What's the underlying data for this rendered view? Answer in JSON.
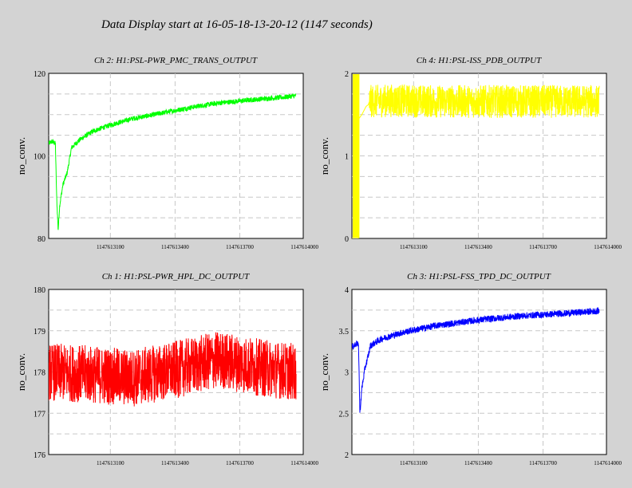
{
  "header": {
    "title": "Data Display start at 16-05-18-13-20-12 (1147 seconds)"
  },
  "colors": {
    "background": "#d3d3d3",
    "plot_bg": "#ffffff",
    "grid": "#c8c8c8"
  },
  "chart_data": [
    {
      "id": "ch2",
      "type": "line",
      "title": "Ch 2: H1:PSL-PWR_PMC_TRANS_OUTPUT",
      "ylabel": "no_conv.",
      "color": "#00ff00",
      "xlim": [
        1147612814,
        1147613994
      ],
      "ylim": [
        80,
        120
      ],
      "yticks": [
        "80",
        "100",
        "120"
      ],
      "xticks": [
        "1147613100",
        "1147613400",
        "1147613700",
        "1147614000"
      ],
      "x": [
        1147612814,
        1147612830,
        1147612845,
        1147612851,
        1147612858,
        1147612865,
        1147612880,
        1147612900,
        1147612920,
        1147612960,
        1147613020,
        1147613100,
        1147613200,
        1147613300,
        1147613400,
        1147613500,
        1147613600,
        1147613700,
        1147613800,
        1147613900,
        1147613961
      ],
      "y": [
        103,
        103.5,
        103,
        90,
        82,
        88,
        93,
        96,
        102,
        104,
        106,
        107.5,
        109,
        110,
        111,
        112,
        112.8,
        113.3,
        113.8,
        114.2,
        114.6
      ],
      "noise": 0.6
    },
    {
      "id": "ch4",
      "type": "line",
      "title": "Ch 4: H1:PSL-ISS_PDB_OUTPUT",
      "ylabel": "no_conv.",
      "color": "#ffff00",
      "xlim": [
        1147612814,
        1147613994
      ],
      "ylim": [
        0,
        2
      ],
      "yticks": [
        "0",
        "1",
        "2"
      ],
      "xticks": [
        "1147613100",
        "1147613400",
        "1147613700",
        "1147614000"
      ],
      "x": [
        1147612814,
        1147612845,
        1147612846,
        1147612860,
        1147612880,
        1147612890,
        1147612895,
        1147613000,
        1147613200,
        1147613400,
        1147613600,
        1147613800,
        1147613961
      ],
      "y": [
        0,
        0,
        1.45,
        1.5,
        1.6,
        1.62,
        1.66,
        1.67,
        1.66,
        1.66,
        1.66,
        1.66,
        1.66
      ],
      "noise": 0.2,
      "noise_start": 1147612895
    },
    {
      "id": "ch1",
      "type": "line",
      "title": "Ch 1: H1:PSL-PWR_HPL_DC_OUTPUT",
      "ylabel": "no_conv.",
      "color": "#ff0000",
      "xlim": [
        1147612814,
        1147613994
      ],
      "ylim": [
        176,
        180
      ],
      "yticks": [
        "176",
        "177",
        "178",
        "179",
        "180"
      ],
      "xticks": [
        "1147613100",
        "1147613400",
        "1147613700",
        "1147614000"
      ],
      "x": [
        1147612814,
        1147613000,
        1147613200,
        1147613400,
        1147613600,
        1147613800,
        1147613961
      ],
      "y": [
        178,
        177.95,
        177.85,
        178.05,
        178.3,
        178.1,
        178
      ],
      "noise": 0.7
    },
    {
      "id": "ch3",
      "type": "line",
      "title": "Ch 3: H1:PSL-FSS_TPD_DC_OUTPUT",
      "ylabel": "no_conv.",
      "color": "#0000ff",
      "xlim": [
        1147612814,
        1147613994
      ],
      "ylim": [
        2,
        4
      ],
      "yticks": [
        "2",
        "2.5",
        "3",
        "3.5",
        "4"
      ],
      "xticks": [
        "1147613100",
        "1147613400",
        "1147613700",
        "1147614000"
      ],
      "x": [
        1147612814,
        1147612838,
        1147612845,
        1147612851,
        1147612860,
        1147612875,
        1147612890,
        1147612900,
        1147612950,
        1147613050,
        1147613200,
        1147613400,
        1147613600,
        1147613800,
        1147613961
      ],
      "y": [
        3.3,
        3.35,
        3.3,
        2.5,
        2.8,
        3.05,
        3.2,
        3.32,
        3.4,
        3.48,
        3.56,
        3.63,
        3.68,
        3.71,
        3.74
      ],
      "noise": 0.04
    }
  ]
}
